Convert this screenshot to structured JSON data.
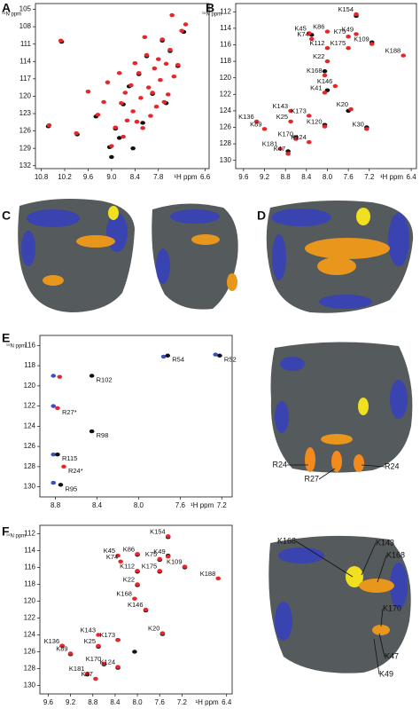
{
  "chart_data": [
    {
      "panel": "A",
      "type": "scatter",
      "x_label": "¹H ppm",
      "y_label": "¹⁵N ppm",
      "xlim": [
        10.95,
        6.5
      ],
      "ylim": [
        132.5,
        104
      ],
      "xticks": [
        10.8,
        10.2,
        9.6,
        {
          "value": 9,
          "label": "9.0"
        },
        8.4,
        7.8,
        6.6
      ],
      "yticks": [
        105,
        108,
        111,
        114,
        117,
        120,
        123,
        126,
        129,
        132
      ],
      "series": [
        {
          "color": "#111111",
          "x": [
            10.62,
            10.28,
            9.88,
            9.4,
            9.05,
            8.9,
            8.7,
            8.55,
            8.3,
            8.1,
            7.95,
            7.7,
            7.5,
            7.3,
            7.15,
            8.8,
            8.2,
            7.6,
            9.0,
            8.45
          ],
          "values": [
            125.2,
            110.6,
            126.6,
            123.5,
            128.8,
            125.6,
            121.4,
            118.3,
            116.2,
            113.1,
            119.6,
            110.4,
            112.2,
            114.8,
            108.9,
            127.2,
            124.6,
            121.2,
            130.5,
            129.0
          ]
        },
        {
          "color": "#e8262a",
          "x": [
            10.6,
            10.3,
            9.9,
            9.6,
            9.35,
            9.2,
            9.1,
            9.0,
            8.9,
            8.8,
            8.75,
            8.65,
            8.6,
            8.5,
            8.45,
            8.4,
            8.3,
            8.25,
            8.2,
            8.1,
            8.05,
            8.0,
            7.95,
            7.9,
            7.85,
            7.8,
            7.75,
            7.7,
            7.6,
            7.55,
            7.5,
            7.4,
            7.3,
            7.2,
            7.1,
            8.7,
            8.35,
            7.65,
            8.15,
            7.45
          ],
          "values": [
            125.0,
            110.4,
            126.4,
            119.2,
            123.2,
            121.0,
            117.6,
            128.6,
            125.4,
            116.0,
            121.2,
            119.4,
            124.2,
            118.1,
            122.6,
            114.3,
            116.0,
            120.3,
            125.5,
            112.9,
            118.5,
            123.4,
            119.4,
            115.2,
            121.8,
            113.6,
            117.2,
            110.2,
            114.4,
            119.7,
            112.0,
            116.6,
            114.6,
            108.7,
            107.6,
            127.0,
            124.4,
            121.0,
            109.8,
            106.0
          ]
        }
      ]
    },
    {
      "panel": "B",
      "type": "scatter",
      "x_label": "¹H ppm",
      "y_label": "¹⁵N ppm",
      "xlim": [
        9.75,
        6.3
      ],
      "ylim": [
        131,
        111
      ],
      "xticks": [
        9.6,
        9.2,
        8.8,
        8.4,
        {
          "value": 8,
          "label": "8.0"
        },
        7.6,
        7.2,
        6.4
      ],
      "yticks": [
        112,
        114,
        116,
        118,
        120,
        122,
        124,
        126,
        128,
        130
      ],
      "series": [
        {
          "color": "#111111",
          "x": [
            7.45,
            8.3,
            7.15,
            8.05,
            8.05,
            7.25,
            8.6,
            8.0,
            7.6,
            8.75
          ],
          "values": [
            112.5,
            114.8,
            115.7,
            119.2,
            125.7,
            126.0,
            127.2,
            121.5,
            124.0,
            128.9
          ]
        },
        {
          "color": "#e8262a",
          "x": [
            7.45,
            8.35,
            8.0,
            7.6,
            7.45,
            8.3,
            8.0,
            7.6,
            7.15,
            6.55,
            8.0,
            8.05,
            7.85,
            8.05,
            7.55,
            8.7,
            8.35,
            9.35,
            8.7,
            9.2,
            8.05,
            7.25,
            8.6,
            8.35,
            8.9,
            8.75
          ],
          "values": [
            112.3,
            114.6,
            114.4,
            115.0,
            114.7,
            115.3,
            116.4,
            116.4,
            115.9,
            117.3,
            118.0,
            119.7,
            121.0,
            121.8,
            123.8,
            124.0,
            124.6,
            125.3,
            125.3,
            126.2,
            125.9,
            126.2,
            127.4,
            127.8,
            128.6,
            129.2
          ],
          "point_labels": [
            "K154",
            "K45",
            "K86",
            "K75",
            "K49",
            "K74",
            "K112",
            "K175",
            "K109",
            "K188",
            "K22",
            "K168",
            "K146",
            "K41",
            "K20",
            "K143",
            "K173",
            "K136",
            "K25",
            "K89",
            "K120",
            "K30",
            "K170",
            "K124",
            "K181",
            "K47"
          ]
        }
      ]
    },
    {
      "panel": "E",
      "type": "scatter",
      "x_label": "¹H ppm",
      "y_label": "¹⁵N ppm",
      "xlim": [
        8.95,
        7.1
      ],
      "ylim": [
        131,
        115
      ],
      "xticks": [
        8.8,
        8.4,
        {
          "value": 8,
          "label": "8.0"
        },
        7.6,
        7.2
      ],
      "yticks": [
        116,
        118,
        120,
        122,
        124,
        126,
        128,
        130
      ],
      "series": [
        {
          "color": "#3a4fc4",
          "x": [
            8.82,
            8.82,
            8.82,
            8.82,
            7.76,
            7.26
          ],
          "values": [
            119.0,
            122.0,
            126.8,
            129.6,
            117.1,
            116.9
          ]
        },
        {
          "color": "#e8262a",
          "x": [
            8.76,
            8.78,
            8.72
          ],
          "values": [
            119.1,
            122.2,
            128.0
          ],
          "point_labels": [
            null,
            "R27*",
            "R24*"
          ]
        },
        {
          "color": "#111111",
          "x": [
            7.72,
            7.22,
            8.45,
            8.45,
            8.78,
            8.75
          ],
          "values": [
            117.0,
            117.0,
            119.0,
            124.5,
            126.8,
            129.8
          ],
          "point_labels": [
            "R54",
            "R52",
            "R102",
            "R98",
            "R115",
            "R95"
          ]
        }
      ]
    },
    {
      "panel": "F",
      "type": "scatter",
      "x_label": "¹H ppm",
      "y_label": "¹⁵N ppm",
      "xlim": [
        9.75,
        6.3
      ],
      "ylim": [
        131,
        111
      ],
      "xticks": [
        9.6,
        9.2,
        8.8,
        8.4,
        {
          "value": 8,
          "label": "8.0"
        },
        7.6,
        7.2,
        6.4
      ],
      "yticks": [
        112,
        114,
        116,
        118,
        120,
        122,
        124,
        126,
        128,
        130
      ],
      "series": [
        {
          "color": "#111111",
          "x": [
            7.45,
            8.0,
            7.6,
            7.45,
            8.0,
            7.6,
            7.15,
            8.0,
            7.85,
            7.55,
            8.35,
            9.35,
            8.7,
            9.2,
            8.05,
            8.6,
            8.35,
            8.9
          ],
          "values": [
            112.4,
            114.5,
            115.1,
            114.6,
            116.5,
            116.5,
            116.0,
            118.1,
            121.1,
            123.9,
            124.6,
            125.3,
            125.4,
            126.3,
            126.0,
            127.5,
            127.9,
            128.7
          ]
        },
        {
          "color": "#e8262a",
          "x": [
            7.45,
            8.35,
            8.0,
            7.6,
            7.45,
            8.3,
            8.0,
            7.6,
            7.15,
            6.55,
            8.0,
            8.05,
            7.85,
            7.55,
            8.7,
            8.35,
            9.35,
            8.7,
            9.2,
            8.6,
            8.35,
            8.9,
            8.75
          ],
          "values": [
            112.3,
            114.6,
            114.4,
            115.0,
            114.7,
            115.3,
            116.4,
            116.4,
            115.9,
            117.3,
            118.0,
            119.7,
            121.0,
            123.8,
            124.0,
            124.6,
            125.3,
            125.3,
            126.2,
            127.4,
            127.8,
            128.6,
            129.2
          ],
          "point_labels": [
            "K154",
            "K45",
            "K86",
            "K75",
            "K49",
            "K74",
            "K112",
            "K175",
            "K109",
            "K188",
            "K22",
            "K168",
            "K146",
            "K20",
            "K143",
            "K173",
            "K136",
            "K25",
            "K89",
            "K170",
            "K124",
            "K181",
            "K47"
          ]
        }
      ]
    }
  ],
  "figure": {
    "panel_c": "C",
    "panel_d": "D",
    "structure_e_labels": [
      "R24",
      "R27",
      "R24"
    ],
    "structure_f_labels": [
      "K168",
      "K143",
      "K168",
      "K170",
      "K47",
      "K49"
    ]
  }
}
